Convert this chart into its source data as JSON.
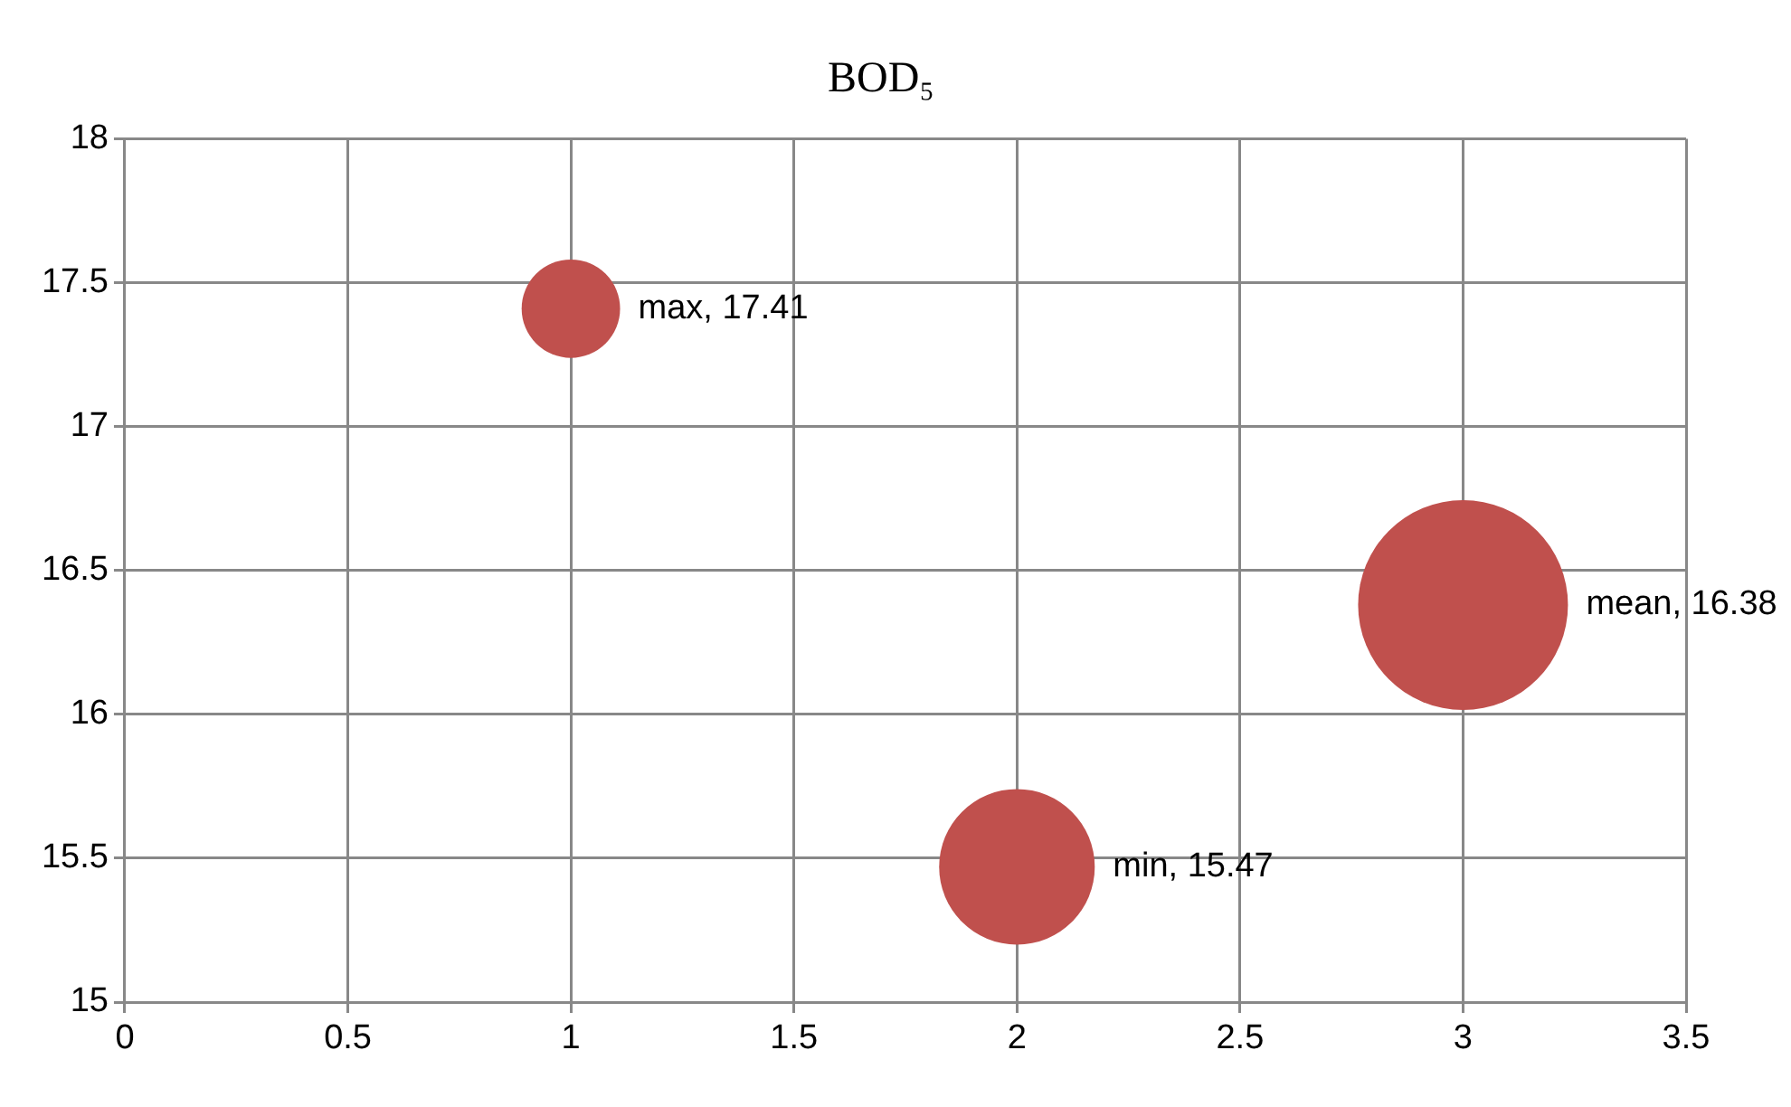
{
  "chart_data": {
    "type": "bubble",
    "title": "BOD₅",
    "x": [
      1,
      2,
      3
    ],
    "series": [
      {
        "color": "#c0504d",
        "values": [
          17.41,
          15.47,
          16.38
        ],
        "sizes": [
          0.22,
          0.55,
          1
        ],
        "value_labels": [
          "max, 17.41",
          "min, 15.47",
          "mean, 16.38"
        ]
      }
    ],
    "xlim": [
      0,
      3.5
    ],
    "xticks": [
      0,
      0.5,
      1,
      1.5,
      2,
      2.5,
      3,
      3.5
    ],
    "ylim": [
      15,
      18
    ],
    "yticks": [
      15,
      15.5,
      16,
      16.5,
      17,
      17.5,
      18
    ],
    "grid": true,
    "legend": false
  }
}
